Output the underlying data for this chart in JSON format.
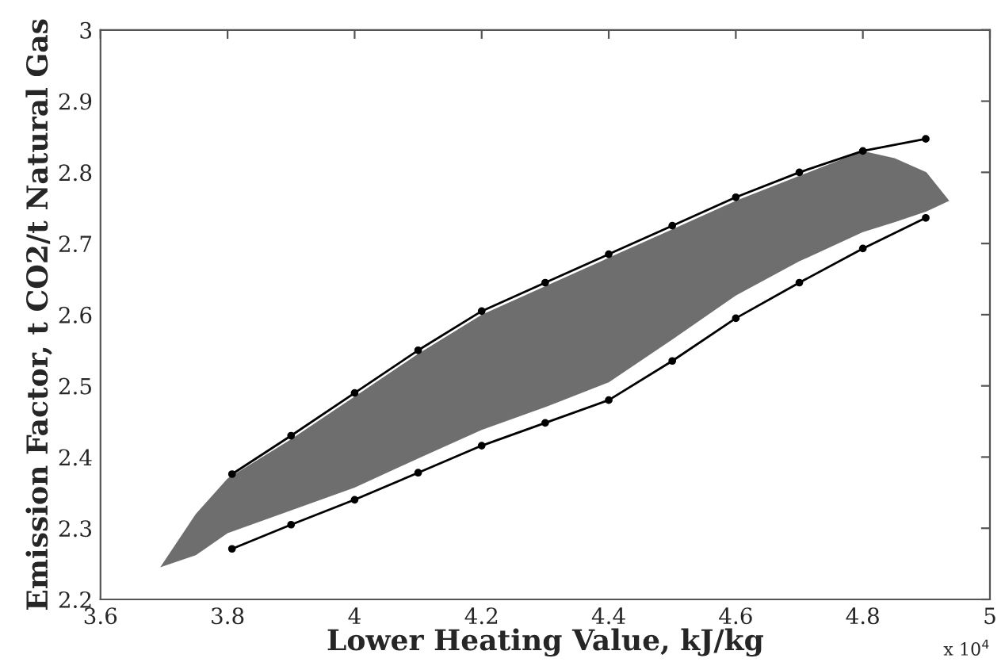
{
  "chart_data": {
    "type": "line",
    "xlabel": "Lower Heating Value, kJ/kg",
    "ylabel": "Emission Factor, t CO2/t Natural Gas",
    "xlim": [
      3.6,
      5
    ],
    "xticks": [
      3.6,
      3.8,
      4,
      4.2,
      4.4,
      4.6,
      4.8,
      5
    ],
    "ylim": [
      2.2,
      3
    ],
    "yticks": [
      2.2,
      2.3,
      2.4,
      2.5,
      2.6,
      2.7,
      2.8,
      2.9,
      3
    ],
    "grid": false,
    "legend": false,
    "annotations": [
      "x 10$^{4}$"
    ],
    "series": [
      {
        "type": "area",
        "color": "#6e6e6e",
        "x": [
          3.694,
          3.75,
          3.8,
          3.9,
          4.0,
          4.1,
          4.2,
          4.3,
          4.4,
          4.5,
          4.6,
          4.7,
          4.8,
          4.85,
          4.9,
          4.936,
          4.9,
          4.85,
          4.8,
          4.7,
          4.6,
          4.5,
          4.4,
          4.3,
          4.2,
          4.1,
          4.0,
          3.9,
          3.8,
          3.75
        ],
        "values": [
          2.245,
          2.32,
          2.37,
          2.425,
          2.485,
          2.545,
          2.6,
          2.64,
          2.68,
          2.72,
          2.76,
          2.795,
          2.83,
          2.82,
          2.8,
          2.76,
          2.745,
          2.73,
          2.716,
          2.675,
          2.627,
          2.565,
          2.505,
          2.47,
          2.438,
          2.398,
          2.357,
          2.325,
          2.293,
          2.262
        ]
      },
      {
        "type": "line",
        "color": "#000000",
        "marker": "circle",
        "line_style": "solid",
        "x": [
          3.807,
          3.9,
          4.0,
          4.1,
          4.2,
          4.3,
          4.4,
          4.5,
          4.6,
          4.7,
          4.8,
          4.899
        ],
        "values": [
          2.376,
          2.43,
          2.49,
          2.55,
          2.605,
          2.645,
          2.685,
          2.725,
          2.765,
          2.8,
          2.83,
          2.847
        ]
      },
      {
        "type": "line",
        "color": "#000000",
        "marker": "circle",
        "line_style": "solid",
        "x": [
          3.807,
          3.9,
          4.0,
          4.1,
          4.2,
          4.3,
          4.4,
          4.5,
          4.6,
          4.7,
          4.8,
          4.899
        ],
        "values": [
          2.271,
          2.305,
          2.34,
          2.378,
          2.416,
          2.448,
          2.48,
          2.535,
          2.595,
          2.645,
          2.693,
          2.736
        ]
      }
    ]
  }
}
